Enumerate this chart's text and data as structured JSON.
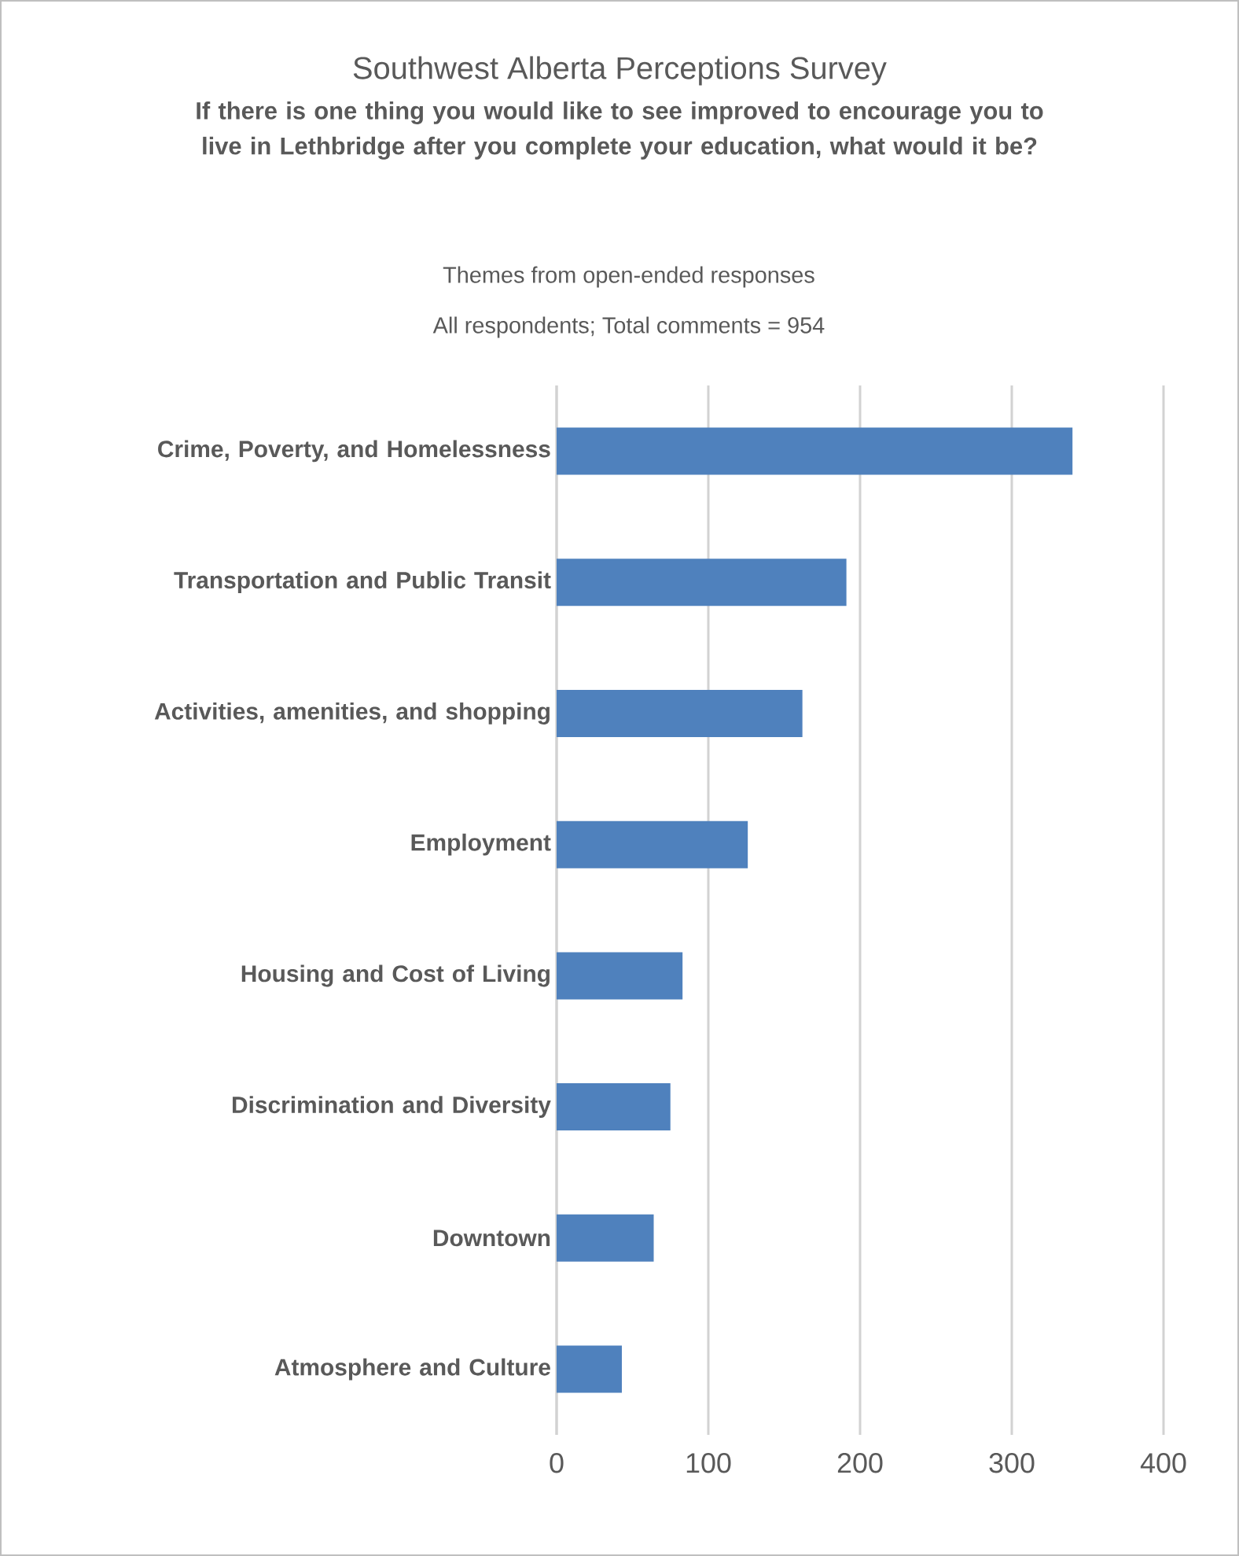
{
  "chart_data": {
    "type": "bar",
    "orientation": "horizontal",
    "title": "Southwest Alberta Perceptions Survey",
    "subtitle": "If there is one thing you would like to see improved to encourage you to live in Lethbridge after you complete your education, what would it be?",
    "annotations": [
      "Themes from open-ended responses",
      "All respondents; Total comments = 954"
    ],
    "categories": [
      "Crime, Poverty, and Homelessness",
      "Transportation and Public Transit",
      "Activities, amenities, and shopping",
      "Employment",
      "Housing and Cost of Living",
      "Discrimination and Diversity",
      "Downtown",
      "Atmosphere and Culture"
    ],
    "values": [
      340,
      191,
      162,
      126,
      83,
      75,
      64,
      43
    ],
    "color": "#4f81bd",
    "xlim": [
      0,
      400
    ],
    "xticks": [
      0,
      100,
      200,
      300,
      400
    ],
    "grid": "x"
  }
}
